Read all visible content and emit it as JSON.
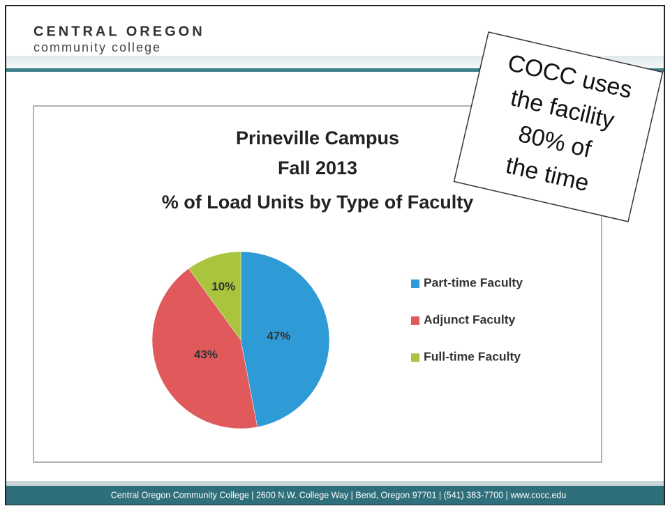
{
  "header": {
    "name": "CENTRAL OREGON",
    "subname": "community college"
  },
  "note": {
    "lines": [
      "COCC uses",
      "the facility",
      "80% of",
      "the time"
    ]
  },
  "footer": {
    "text": "Central Oregon Community College | 2600 N.W. College Way | Bend, Oregon 97701 | (541) 383-7700 | www.cocc.edu"
  },
  "chart_data": {
    "type": "pie",
    "title": [
      "Prineville Campus",
      "Fall 2013",
      "% of Load Units by Type of Faculty"
    ],
    "categories": [
      "Part-time Faculty",
      "Adjunct Faculty",
      "Full-time Faculty"
    ],
    "values": [
      47,
      43,
      10
    ],
    "value_labels": [
      "47%",
      "43%",
      "10%"
    ],
    "colors": [
      "#2e9ad6",
      "#e05a5c",
      "#a9c53d"
    ],
    "legend": "right"
  }
}
